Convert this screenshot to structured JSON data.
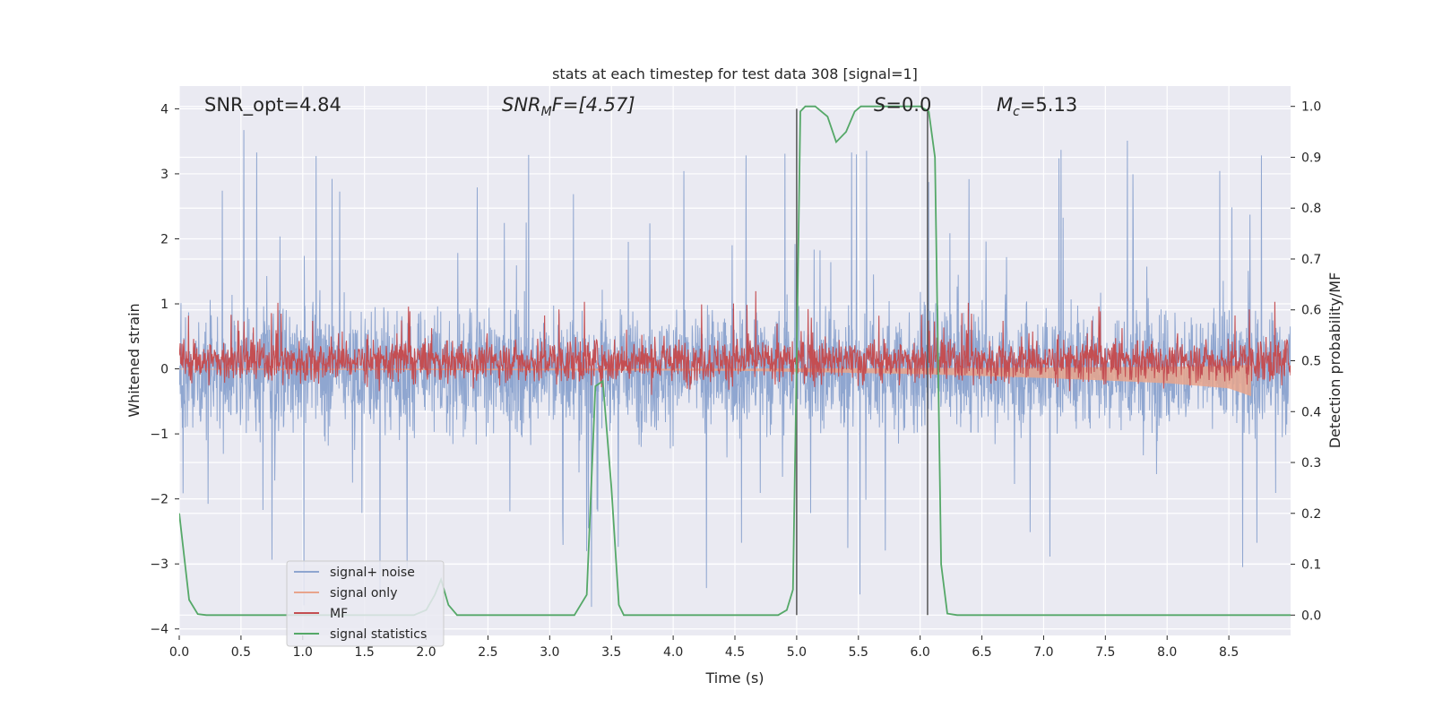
{
  "chart_data": {
    "type": "line",
    "title": "stats at each timestep for test data 308 [signal=1]",
    "xlabel": "Time (s)",
    "ylabel_left": "Whitened strain",
    "ylabel_right": "Detection probability/MF",
    "xlim": [
      0,
      9
    ],
    "ylim_left": [
      -4.1,
      4.35
    ],
    "ylim_right": [
      -0.04,
      1.04
    ],
    "x_ticks": [
      "0.0",
      "0.5",
      "1.0",
      "1.5",
      "2.0",
      "2.5",
      "3.0",
      "3.5",
      "4.0",
      "4.5",
      "5.0",
      "5.5",
      "6.0",
      "6.5",
      "7.0",
      "7.5",
      "8.0",
      "8.5"
    ],
    "y_left_ticks": [
      {
        "value": 4,
        "label": "4"
      },
      {
        "value": 3,
        "label": "3"
      },
      {
        "value": 2,
        "label": "2"
      },
      {
        "value": 1,
        "label": "1"
      },
      {
        "value": 0,
        "label": "0"
      },
      {
        "value": -1,
        "label": "−1"
      },
      {
        "value": -2,
        "label": "−2"
      },
      {
        "value": -3,
        "label": "−3"
      },
      {
        "value": -4,
        "label": "−4"
      }
    ],
    "y_right_ticks": [
      "0.0",
      "0.1",
      "0.2",
      "0.3",
      "0.4",
      "0.5",
      "0.6",
      "0.7",
      "0.8",
      "0.9",
      "1.0"
    ],
    "grid": true,
    "legend_position": "lower-left",
    "annotations": {
      "snr_opt": "SNR_opt=4.84",
      "snr_mf_main": "SNR",
      "snr_mf_sub": "M",
      "snr_mf_rest": "F=[4.57]",
      "s_main": "S",
      "s_rest": "=0.0",
      "mc_main": "M",
      "mc_sub": "c",
      "mc_rest": "=5.13"
    },
    "vertical_lines_x": [
      5.0,
      6.06
    ],
    "series": [
      {
        "name": "signal+ noise",
        "color": "#8fa6d0",
        "axis": "left",
        "envelope_abs": 1.4,
        "peak_abs": 3.7
      },
      {
        "name": "signal only",
        "color": "#e8a48c",
        "axis": "left",
        "x": [
          0,
          4.5,
          6.0,
          7.0,
          8.0,
          8.5,
          8.68
        ],
        "amplitude": [
          0.01,
          0.03,
          0.08,
          0.14,
          0.22,
          0.3,
          0.42
        ]
      },
      {
        "name": "MF",
        "color": "#c44e52",
        "axis": "right",
        "baseline": 0.5,
        "spread": 0.03
      },
      {
        "name": "signal statistics",
        "color": "#55a868",
        "axis": "right",
        "x": [
          0.0,
          0.08,
          0.15,
          0.22,
          0.3,
          0.5,
          1.0,
          1.5,
          1.9,
          2.0,
          2.07,
          2.12,
          2.18,
          2.25,
          2.3,
          3.0,
          3.2,
          3.3,
          3.37,
          3.43,
          3.5,
          3.56,
          3.6,
          3.8,
          4.0,
          4.5,
          4.85,
          4.92,
          4.97,
          5.0,
          5.03,
          5.07,
          5.15,
          5.25,
          5.32,
          5.4,
          5.47,
          5.52,
          5.6,
          5.7,
          5.8,
          5.9,
          6.0,
          6.07,
          6.12,
          6.17,
          6.22,
          6.3,
          6.6,
          7.0,
          7.5,
          8.0,
          8.5,
          9.0
        ],
        "y": [
          0.2,
          0.03,
          0.002,
          0.0,
          0.0,
          0.0,
          0.0,
          0.0,
          0.0,
          0.01,
          0.04,
          0.07,
          0.02,
          0.0,
          0.0,
          0.0,
          0.0,
          0.04,
          0.45,
          0.46,
          0.25,
          0.02,
          0.0,
          0.0,
          0.0,
          0.0,
          0.0,
          0.01,
          0.05,
          0.5,
          0.99,
          1.0,
          1.0,
          0.98,
          0.93,
          0.95,
          0.99,
          1.0,
          1.0,
          1.0,
          1.0,
          1.0,
          1.0,
          0.99,
          0.9,
          0.1,
          0.003,
          0.0,
          0.0,
          0.0,
          0.0,
          0.0,
          0.0,
          0.0
        ]
      }
    ]
  }
}
